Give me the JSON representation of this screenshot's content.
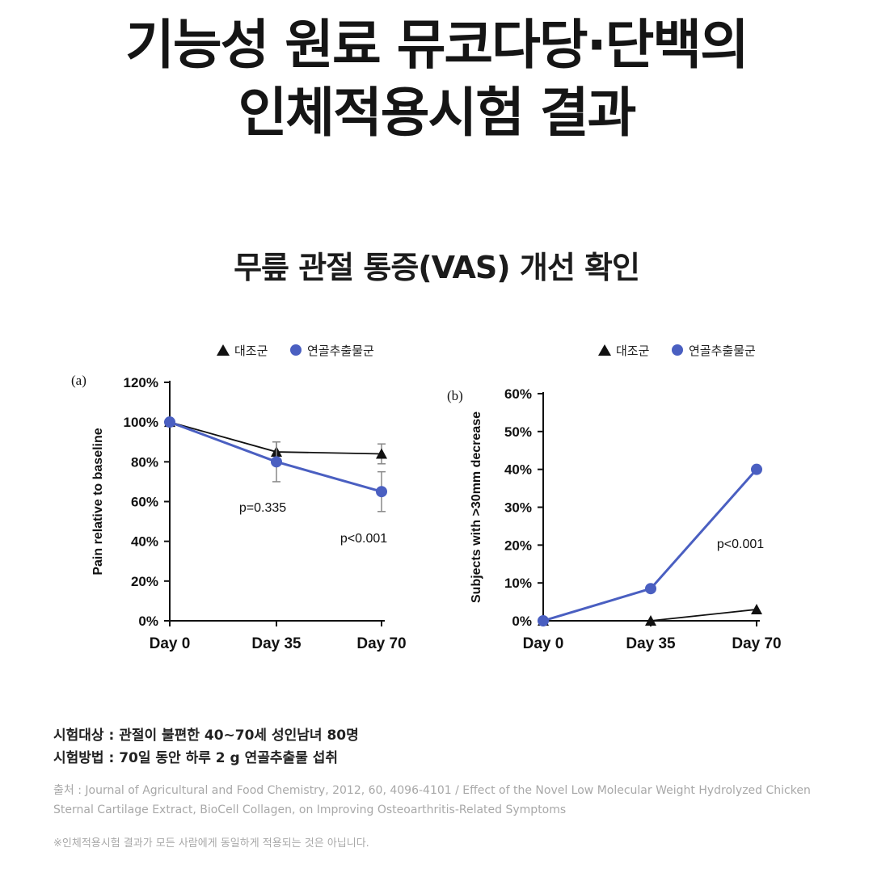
{
  "header": {
    "title_line1": "기능성 원료 뮤코다당·단백의",
    "title_line2": "인체적용시험 결과"
  },
  "subtitle": "무릎 관절 통증(VAS) 개선 확인",
  "chart_data": [
    {
      "type": "line",
      "panel_label": "(a)",
      "categories": [
        "Day 0",
        "Day 35",
        "Day 70"
      ],
      "ylabel": "Pain relative to baseline",
      "ylim": [
        0,
        120
      ],
      "yticks": [
        "0%",
        "20%",
        "40%",
        "60%",
        "80%",
        "100%",
        "120%"
      ],
      "legend": [
        "대조군",
        "연골추출물군"
      ],
      "series": [
        {
          "name": "대조군",
          "marker": "triangle",
          "color": "#111111",
          "values": [
            100,
            85,
            84
          ],
          "err": [
            0,
            5,
            5
          ]
        },
        {
          "name": "연골추출물군",
          "marker": "circle",
          "color": "#4a5fc1",
          "values": [
            100,
            80,
            65
          ],
          "err": [
            0,
            10,
            10
          ]
        }
      ],
      "annotations": [
        "p=0.335",
        "p<0.001"
      ]
    },
    {
      "type": "line",
      "panel_label": "(b)",
      "categories": [
        "Day 0",
        "Day 35",
        "Day 70"
      ],
      "ylabel": "Subjects with >30mm decrease",
      "ylim": [
        0,
        60
      ],
      "yticks": [
        "0%",
        "10%",
        "20%",
        "30%",
        "40%",
        "50%",
        "60%"
      ],
      "legend": [
        "대조군",
        "연골추출물군"
      ],
      "series": [
        {
          "name": "대조군",
          "marker": "triangle",
          "color": "#111111",
          "values": [
            0,
            0,
            3
          ]
        },
        {
          "name": "연골추출물군",
          "marker": "circle",
          "color": "#4a5fc1",
          "values": [
            0,
            8.5,
            40
          ]
        }
      ],
      "annotations": [
        "p<0.001"
      ]
    }
  ],
  "notes": {
    "subjects": "시험대상 : 관절이 불편한 40~70세 성인남녀 80명",
    "method": "시험방법 : 70일 동안 하루 2 g 연골추출물 섭취",
    "source": "출처 : Journal of Agricultural and Food Chemistry, 2012, 60, 4096-4101 / Effect of the Novel Low Molecular Weight Hydrolyzed Chicken Sternal Cartilage Extract, BioCell Collagen, on Improving Osteoarthritis-Related Symptoms",
    "disclaimer": "※인체적용시험 결과가 모든 사람에게 동일하게 적용되는 것은 아닙니다."
  }
}
